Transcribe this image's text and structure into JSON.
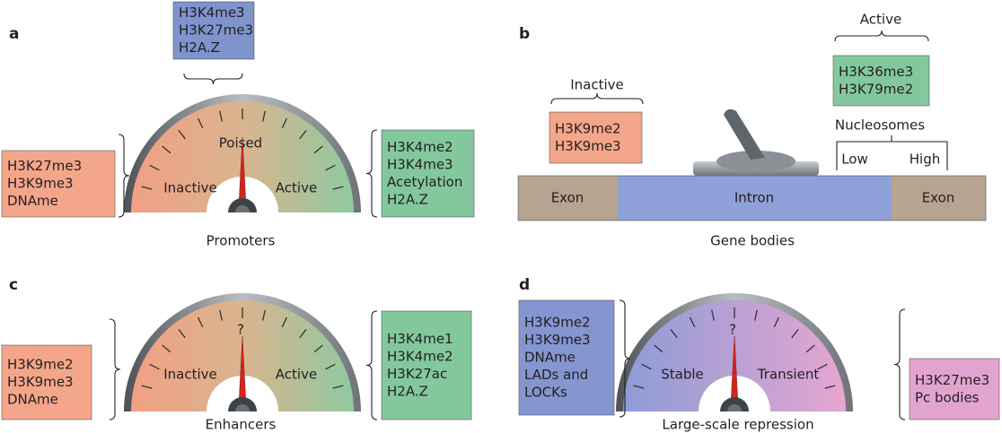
{
  "panel_a": {
    "letter": "a",
    "caption": "Promoters",
    "top_box": [
      "H3K4me3",
      "H3K27me3",
      "H2A.Z"
    ],
    "gauge": {
      "middle": "Poised",
      "left": "Inactive",
      "right": "Active"
    },
    "left_box": [
      "H3K27me3",
      "H3K9me3",
      "DNAme"
    ],
    "right_box": [
      "H3K4me2",
      "H3K4me3",
      "Acetylation",
      "H2A.Z"
    ]
  },
  "panel_b": {
    "letter": "b",
    "caption": "Gene bodies",
    "inactive_label": "Inactive",
    "inactive_box": [
      "H3K9me2",
      "H3K9me3"
    ],
    "active_label": "Active",
    "active_box": [
      "H3K36me3",
      "H3K79me2"
    ],
    "nucleosomes": {
      "label": "Nucleosomes",
      "low": "Low",
      "high": "High"
    },
    "gene": {
      "exon_left": "Exon",
      "intron": "Intron",
      "exon_right": "Exon"
    }
  },
  "panel_c": {
    "letter": "c",
    "caption": "Enhancers",
    "gauge": {
      "middle": "?",
      "left": "Inactive",
      "right": "Active"
    },
    "left_box": [
      "H3K9me2",
      "H3K9me3",
      "DNAme"
    ],
    "right_box": [
      "H3K4me1",
      "H3K4me2",
      "H3K27ac",
      "H2A.Z"
    ]
  },
  "panel_d": {
    "letter": "d",
    "caption": "Large-scale repression",
    "gauge": {
      "middle": "?",
      "left": "Stable",
      "right": "Transient"
    },
    "left_box": [
      "H3K9me2",
      "H3K9me3",
      "DNAme",
      "LADs and",
      "LOCKs"
    ],
    "right_box": [
      "H3K27me3",
      "Pc bodies"
    ]
  }
}
